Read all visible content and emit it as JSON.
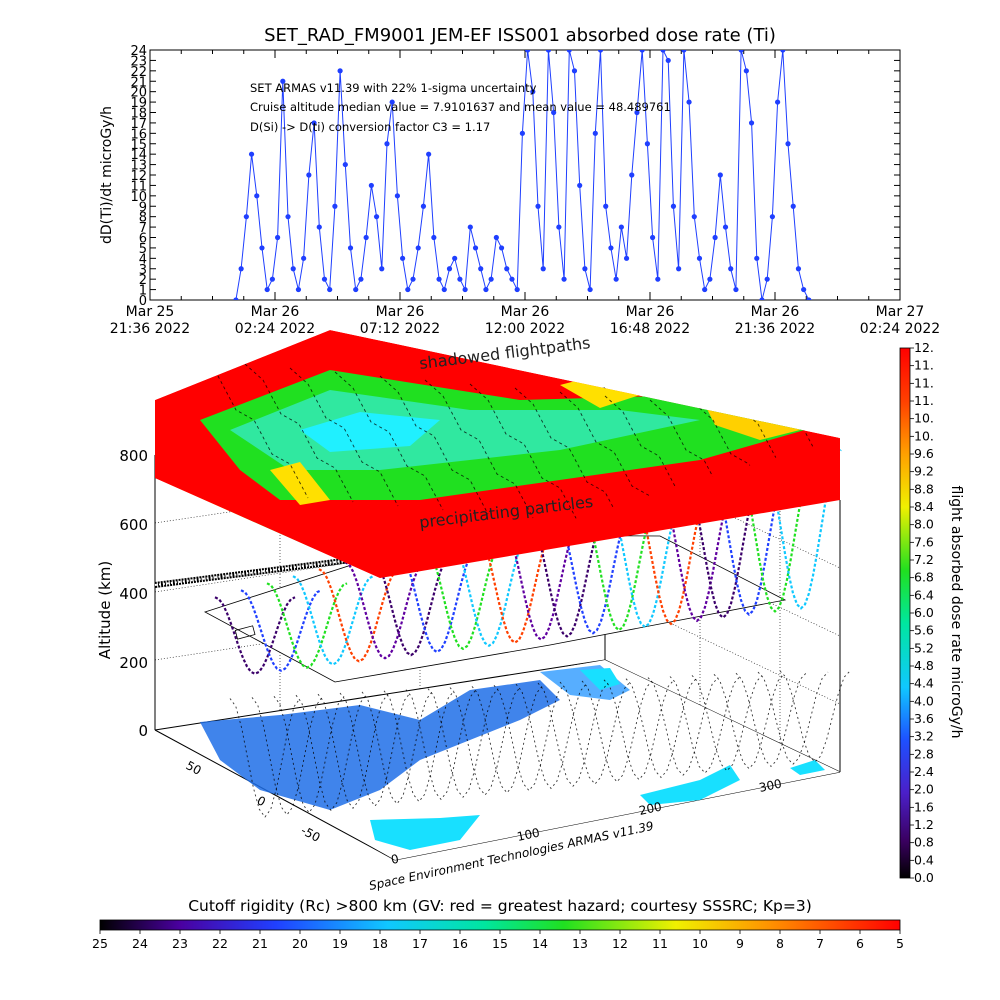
{
  "chart_data": [
    {
      "type": "line",
      "title": "SET_RAD_FM9001  JEM-EF ISS001 absorbed dose rate (Ti)",
      "ylabel": "dD(Ti)/dt microGy/h",
      "xlabel": "",
      "ylim": [
        0,
        24
      ],
      "y_ticks": [
        "0",
        "1",
        "2",
        "3",
        "4",
        "5",
        "6",
        "7",
        "8",
        "9",
        "10",
        "11",
        "12",
        "13",
        "14",
        "15",
        "16",
        "17",
        "18",
        "19",
        "20",
        "21",
        "22",
        "23",
        "24"
      ],
      "x_ticks": [
        {
          "date": "Mar 25",
          "time": "21:36 2022"
        },
        {
          "date": "Mar 26",
          "time": "02:24 2022"
        },
        {
          "date": "Mar 26",
          "time": "07:12 2022"
        },
        {
          "date": "Mar 26",
          "time": "12:00 2022"
        },
        {
          "date": "Mar 26",
          "time": "16:48 2022"
        },
        {
          "date": "Mar 26",
          "time": "21:36 2022"
        },
        {
          "date": "Mar 27",
          "time": "02:24 2022"
        }
      ],
      "xlim_hours": [
        0,
        28.8
      ],
      "annotations": [
        "SET ARMAS v11.39 with 22% 1-sigma uncertainty",
        "Cruise altitude median value = 7.9101637 and mean value = 48.489761",
        "D(Si) -> D(ti) conversion factor C3 = 1.17"
      ],
      "series_color": "#1f3fff",
      "x_hours": [
        3.3,
        3.5,
        3.7,
        3.9,
        4.1,
        4.3,
        4.5,
        4.7,
        4.9,
        5.1,
        5.3,
        5.5,
        5.7,
        5.9,
        6.1,
        6.3,
        6.5,
        6.7,
        6.9,
        7.1,
        7.3,
        7.5,
        7.7,
        7.9,
        8.1,
        8.3,
        8.5,
        8.7,
        8.9,
        9.1,
        9.3,
        9.5,
        9.7,
        9.9,
        10.1,
        10.3,
        10.5,
        10.7,
        10.9,
        11.1,
        11.3,
        11.5,
        11.7,
        11.9,
        12.1,
        12.3,
        12.5,
        12.7,
        12.9,
        13.1,
        13.3,
        13.5,
        13.7,
        13.9,
        14.1,
        14.3,
        14.5,
        14.7,
        14.9,
        15.1,
        15.3,
        15.5,
        15.7,
        15.9,
        16.1,
        16.3,
        16.5,
        16.7,
        16.9,
        17.1,
        17.3,
        17.5,
        17.7,
        17.9,
        18.1,
        18.3,
        18.5,
        18.7,
        18.9,
        19.1,
        19.3,
        19.5,
        19.7,
        19.9,
        20.1,
        20.3,
        20.5,
        20.7,
        20.9,
        21.1,
        21.3,
        21.5,
        21.7,
        21.9,
        22.1,
        22.3,
        22.5,
        22.7,
        22.9,
        23.1,
        23.3,
        23.5,
        23.7,
        23.9,
        24.1,
        24.3,
        24.5,
        24.7,
        24.9,
        25.1,
        25.3
      ],
      "values": [
        0,
        3,
        8,
        14,
        10,
        5,
        1,
        2,
        6,
        21,
        8,
        3,
        1,
        4,
        12,
        17,
        7,
        2,
        1,
        9,
        22,
        13,
        5,
        1,
        2,
        6,
        11,
        8,
        3,
        15,
        19,
        10,
        4,
        1,
        2,
        5,
        9,
        14,
        6,
        2,
        1,
        3,
        4,
        2,
        1,
        7,
        5,
        3,
        1,
        2,
        6,
        5,
        3,
        2,
        1,
        16,
        24,
        20,
        9,
        3,
        24,
        18,
        7,
        2,
        24,
        22,
        11,
        3,
        1,
        16,
        24,
        9,
        5,
        2,
        7,
        4,
        12,
        18,
        24,
        15,
        6,
        2,
        24,
        23,
        9,
        3,
        24,
        19,
        8,
        4,
        1,
        2,
        6,
        12,
        7,
        3,
        1,
        24,
        22,
        17,
        4,
        0,
        2,
        8,
        19,
        24,
        15,
        9,
        3,
        1,
        0
      ]
    },
    {
      "type": "heatmap",
      "title": "",
      "zlabel": "Altitude (km)",
      "z_ticks": [
        "0",
        "200",
        "400",
        "600",
        "800"
      ],
      "lon_ticks": [
        "0",
        "100",
        "200",
        "300"
      ],
      "lat_ticks": [
        "-50",
        "0",
        "50"
      ],
      "labels": [
        "shadowed flightpaths",
        "precipitating particles"
      ],
      "credit": "Space Environment Technologies ARMAS v11.39",
      "colorbar_right": {
        "label": "flight absorbed dose rate microGy/h",
        "ticks": [
          "0.0",
          "0.4",
          "0.8",
          "1.2",
          "1.6",
          "2.0",
          "2.4",
          "2.8",
          "3.2",
          "3.6",
          "4.0",
          "4.4",
          "4.8",
          "5.2",
          "5.6",
          "6.0",
          "6.4",
          "6.8",
          "7.2",
          "7.6",
          "8.0",
          "8.4",
          "8.8",
          "9.2",
          "9.6",
          "10.",
          "10.",
          "11.",
          "11.",
          "11.",
          "12."
        ]
      },
      "colorbar_bottom": {
        "label": "Cutoff rigidity (Rc) >800 km (GV: red = greatest hazard; courtesy SSSRC; Kp=3)",
        "ticks": [
          "25",
          "24",
          "23",
          "22",
          "21",
          "20",
          "19",
          "18",
          "17",
          "16",
          "15",
          "14",
          "13",
          "12",
          "11",
          "10",
          "9",
          "8",
          "7",
          "6",
          "5"
        ]
      }
    }
  ]
}
